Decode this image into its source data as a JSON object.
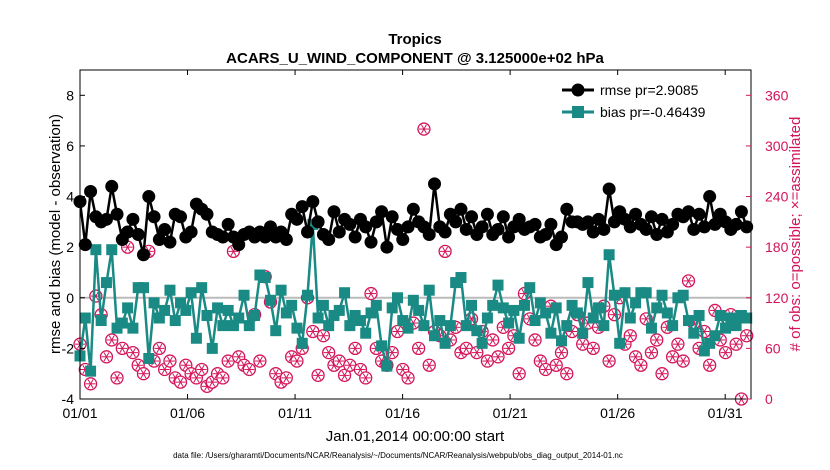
{
  "chart_data": {
    "type": "line",
    "title": "Tropics",
    "subtitle": "ACARS_U_WIND_COMPONENT @ 3.125000e+02 hPa",
    "xlabel": "Jan.01,2014 00:00:00 start",
    "ylabel": "rmse and bias (model - observation)",
    "y2label": "# of obs: o=possible; ×=assimilated",
    "ylim": [
      -4,
      9
    ],
    "y2lim": [
      0,
      390
    ],
    "xlim": [
      0,
      31.2
    ],
    "xticks": [
      0,
      5,
      10,
      15,
      20,
      25,
      30
    ],
    "xtick_labels": [
      "01/01",
      "01/06",
      "01/11",
      "01/16",
      "01/21",
      "01/26",
      "01/31"
    ],
    "yticks": [
      -4,
      -2,
      0,
      2,
      4,
      6,
      8
    ],
    "y2ticks": [
      0,
      60,
      120,
      180,
      240,
      300,
      360
    ],
    "footnote": "data file: /Users/gharamti/Documents/NCAR/Reanalysis/~/Documents/NCAR/Reanalysis/webpub/obs_diag_output_2014-01.nc",
    "series": [
      {
        "name": "rmse pr=2.9085",
        "color": "#000000",
        "marker": "circle",
        "axis": "left",
        "values": [
          3.8,
          2.1,
          4.2,
          3.2,
          3.0,
          3.1,
          4.4,
          3.3,
          2.3,
          2.6,
          3.1,
          2.5,
          1.7,
          4.0,
          3.2,
          2.3,
          2.7,
          2.2,
          3.3,
          3.2,
          2.4,
          2.6,
          3.7,
          3.5,
          3.3,
          2.6,
          2.5,
          2.4,
          2.9,
          2.4,
          2.1,
          2.5,
          2.6,
          2.4,
          2.6,
          2.4,
          2.8,
          2.4,
          2.6,
          2.3,
          3.3,
          3.1,
          3.6,
          2.6,
          3.8,
          3.0,
          2.5,
          2.3,
          3.4,
          2.6,
          3.1,
          2.9,
          2.4,
          3.1,
          2.8,
          2.2,
          3.0,
          3.4,
          2.0,
          3.2,
          2.7,
          2.3,
          2.8,
          3.5,
          3.0,
          2.8,
          2.5,
          4.5,
          2.8,
          2.6,
          3.3,
          3.0,
          3.5,
          2.7,
          3.2,
          2.5,
          2.8,
          3.3,
          2.5,
          2.7,
          3.2,
          2.4,
          2.8,
          3.1,
          2.7,
          2.8,
          2.9,
          2.4,
          2.5,
          2.9,
          2.1,
          2.4,
          3.5,
          3.0,
          3.0,
          2.9,
          3.0,
          2.6,
          3.1,
          2.7,
          4.3,
          3.0,
          3.4,
          3.1,
          2.8,
          3.3,
          2.9,
          2.7,
          3.2,
          2.5,
          3.1,
          2.6,
          2.9,
          3.3,
          3.2,
          3.4,
          2.7,
          3.3,
          2.8,
          4.0,
          2.9,
          3.3,
          3.0,
          2.7,
          2.9,
          3.4,
          2.8
        ]
      },
      {
        "name": "bias pr=-0.46439",
        "color": "#1a8a85",
        "marker": "square",
        "axis": "left",
        "values": [
          -2.3,
          -0.8,
          -2.9,
          1.9,
          -0.9,
          0.6,
          1.9,
          -1.2,
          -1.0,
          -0.4,
          -1.2,
          0.4,
          0.4,
          -2.4,
          -0.2,
          -0.8,
          -0.5,
          0.3,
          -0.9,
          -0.2,
          -0.5,
          0.2,
          -1.6,
          0.4,
          -0.7,
          -2.0,
          -0.4,
          -1.1,
          -0.5,
          -1.1,
          -0.8,
          0.1,
          -1.1,
          -0.7,
          0.9,
          0.8,
          -0.1,
          -1.3,
          0.3,
          -0.6,
          -0.3,
          -1.2,
          -1.8,
          0.1,
          2.9,
          -0.8,
          -0.3,
          -1.1,
          -0.7,
          -0.5,
          0.2,
          -1.1,
          -0.7,
          -0.9,
          -1.4,
          -0.6,
          -0.3,
          -1.9,
          -2.7,
          -0.4,
          0.0,
          -0.9,
          -1.2,
          -0.1,
          -0.5,
          -1.1,
          0.3,
          -1.5,
          -0.9,
          -1.8,
          -1.1,
          0.6,
          0.8,
          -1.1,
          -0.3,
          -1.3,
          -1.8,
          -0.8,
          -0.3,
          0.5,
          -0.4,
          -1.0,
          -0.5,
          -1.6,
          -0.3,
          0.4,
          -0.9,
          -0.2,
          -0.6,
          -1.4,
          -0.4,
          -1.7,
          -1.1,
          -0.3,
          -0.6,
          -1.4,
          0.6,
          -0.8,
          -0.4,
          -1.1,
          1.7,
          0.1,
          -1.8,
          0.2,
          -0.8,
          -0.2,
          0.2,
          0.2,
          -1.2,
          -0.4,
          0.1,
          -0.6,
          -1.1,
          0.0,
          0.1,
          -0.9,
          -1.4,
          -0.7,
          -2.1,
          -1.8,
          -1.5,
          -0.7,
          -1.2,
          -0.8,
          -1.1,
          -0.7,
          -0.8
        ]
      },
      {
        "name": "# of obs possible",
        "color": "#d4145a",
        "marker": "circle-open",
        "axis": "right",
        "values": [
          65,
          35,
          18,
          122,
          100,
          50,
          70,
          25,
          60,
          180,
          55,
          40,
          30,
          175,
          45,
          60,
          35,
          45,
          25,
          20,
          40,
          30,
          25,
          35,
          15,
          20,
          30,
          25,
          45,
          175,
          50,
          40,
          35,
          100,
          45,
          145,
          115,
          30,
          20,
          25,
          50,
          45,
          60,
          120,
          80,
          28,
          75,
          55,
          40,
          45,
          28,
          40,
          60,
          35,
          25,
          125,
          60,
          45,
          40,
          55,
          80,
          35,
          25,
          90,
          60,
          320,
          40,
          80,
          75,
          175,
          70,
          85,
          55,
          60,
          95,
          55,
          80,
          45,
          70,
          50,
          85,
          60,
          75,
          30,
          125,
          95,
          70,
          45,
          35,
          110,
          40,
          55,
          30,
          80,
          100,
          65,
          90,
          60,
          85,
          110,
          45,
          100,
          120,
          65,
          75,
          50,
          40,
          95,
          55,
          70,
          30,
          85,
          50,
          65,
          45,
          140,
          90,
          60,
          80,
          40,
          105,
          70,
          55,
          100,
          65,
          0,
          75
        ]
      }
    ]
  }
}
